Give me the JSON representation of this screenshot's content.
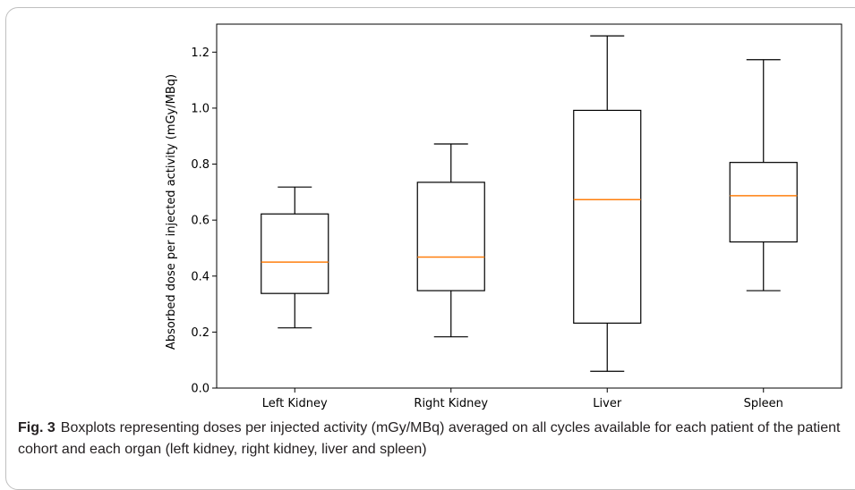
{
  "chart_data": {
    "type": "box",
    "ylabel": "Absorbed dose per injected activity (mGy/MBq)",
    "xlabel": "",
    "ylim": [
      0.0,
      1.3
    ],
    "yticks": [
      0.0,
      0.2,
      0.4,
      0.6,
      0.8,
      1.0,
      1.2
    ],
    "ytick_labels": [
      "0.0",
      "0.2",
      "0.4",
      "0.6",
      "0.8",
      "1.0",
      "1.2"
    ],
    "categories": [
      "Left Kidney",
      "Right Kidney",
      "Liver",
      "Spleen"
    ],
    "boxes": [
      {
        "category": "Left Kidney",
        "whisker_low": 0.215,
        "q1": 0.338,
        "median": 0.45,
        "q3": 0.622,
        "whisker_high": 0.718
      },
      {
        "category": "Right Kidney",
        "whisker_low": 0.183,
        "q1": 0.348,
        "median": 0.468,
        "q3": 0.735,
        "whisker_high": 0.872
      },
      {
        "category": "Liver",
        "whisker_low": 0.06,
        "q1": 0.232,
        "median": 0.673,
        "q3": 0.992,
        "whisker_high": 1.258
      },
      {
        "category": "Spleen",
        "whisker_low": 0.348,
        "q1": 0.522,
        "median": 0.687,
        "q3": 0.806,
        "whisker_high": 1.173
      }
    ],
    "colors": {
      "box": "#000000",
      "median": "#ff7f0e"
    },
    "grid": false,
    "legend": "none"
  },
  "caption": {
    "label": "Fig. 3",
    "text": "Boxplots representing doses per injected activity (mGy/MBq) averaged on all cycles available for each patient of the patient cohort and each organ (left kidney, right kidney, liver and spleen)"
  }
}
